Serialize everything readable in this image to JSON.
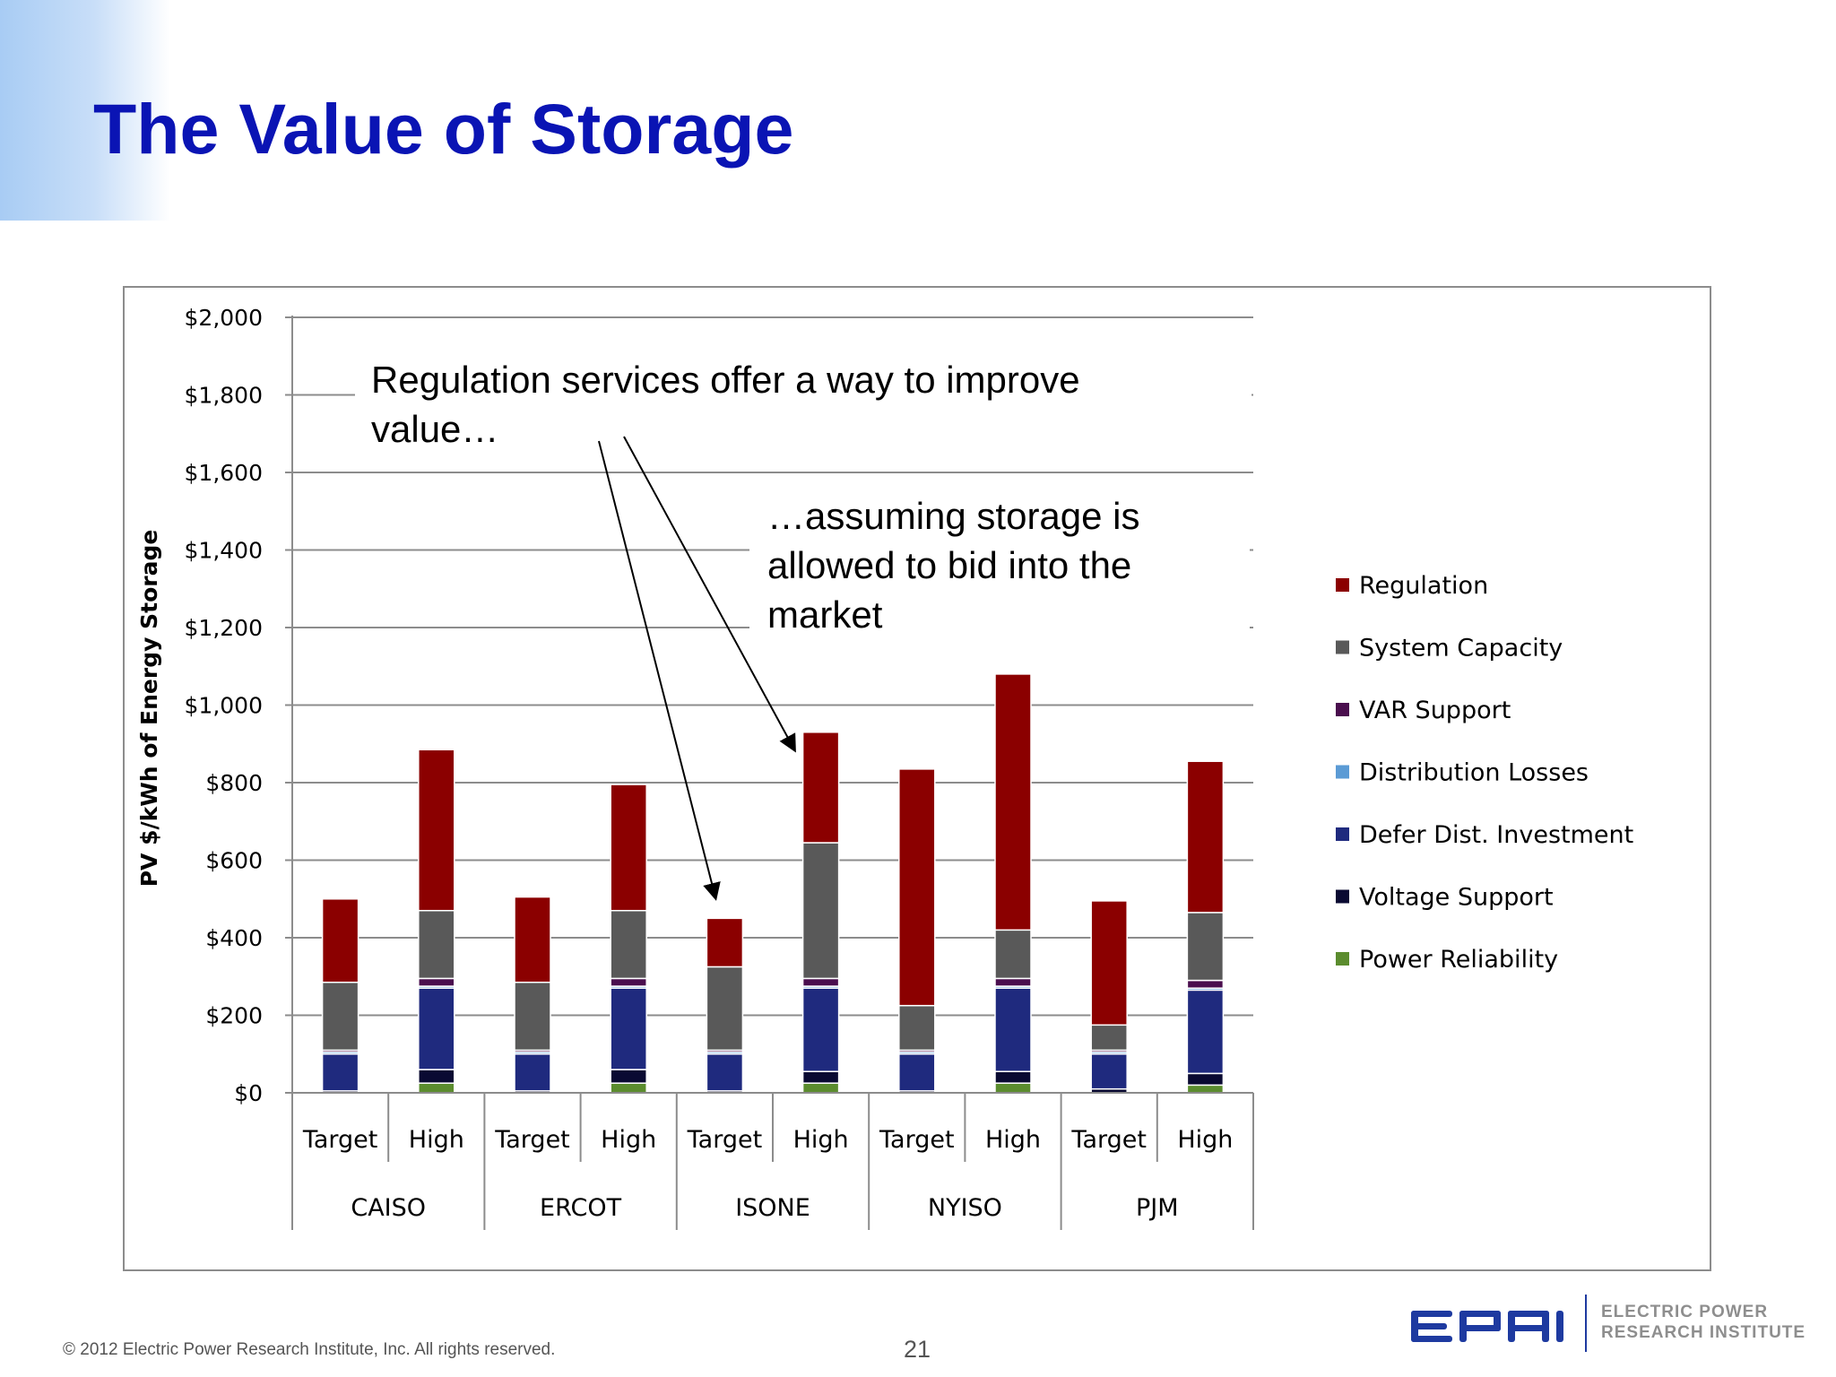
{
  "slide": {
    "title": "The Value of Storage",
    "footer": "© 2012 Electric Power Research Institute, Inc. All rights reserved.",
    "page_number": "21",
    "logo": {
      "wordmark": "EPRI",
      "tagline_line1": "ELECTRIC POWER",
      "tagline_line2": "RESEARCH INSTITUTE",
      "color": "#1e3aa0"
    }
  },
  "chart_data": {
    "type": "bar",
    "stacked": true,
    "title": "",
    "ylabel": "PV $/kWh of Energy Storage",
    "xlabel": "",
    "ylim": [
      0,
      2000
    ],
    "yticks": [
      0,
      200,
      400,
      600,
      800,
      1000,
      1200,
      1400,
      1600,
      1800,
      2000
    ],
    "ytick_labels": [
      "$0",
      "$200",
      "$400",
      "$600",
      "$800",
      "$1,000",
      "$1,200",
      "$1,400",
      "$1,600",
      "$1,800",
      "$2,000"
    ],
    "grid": true,
    "legend_position": "right",
    "groups": [
      "CAISO",
      "ERCOT",
      "ISONE",
      "NYISO",
      "PJM"
    ],
    "categories": [
      "Target",
      "High",
      "Target",
      "High",
      "Target",
      "High",
      "Target",
      "High",
      "Target",
      "High"
    ],
    "series": [
      {
        "name": "Power Reliability",
        "color": "#5b8c2e",
        "values": [
          0,
          25,
          0,
          25,
          0,
          25,
          0,
          25,
          0,
          20
        ]
      },
      {
        "name": "Voltage Support",
        "color": "#0a0a32",
        "values": [
          5,
          35,
          5,
          35,
          5,
          30,
          5,
          30,
          10,
          30
        ]
      },
      {
        "name": "Defer Dist. Investment",
        "color": "#1f2a7e",
        "values": [
          95,
          210,
          95,
          210,
          95,
          215,
          95,
          215,
          90,
          215
        ]
      },
      {
        "name": "Distribution Losses",
        "color": "#5b9bd5",
        "values": [
          5,
          5,
          5,
          5,
          5,
          5,
          5,
          5,
          5,
          5
        ]
      },
      {
        "name": "VAR Support",
        "color": "#4a0e4e",
        "values": [
          5,
          20,
          5,
          20,
          5,
          20,
          5,
          20,
          5,
          20
        ]
      },
      {
        "name": "System Capacity",
        "color": "#595959",
        "values": [
          175,
          175,
          175,
          175,
          215,
          350,
          115,
          125,
          65,
          175
        ]
      },
      {
        "name": "Regulation",
        "color": "#8b0000",
        "values": [
          215,
          415,
          220,
          325,
          125,
          285,
          610,
          660,
          320,
          390
        ]
      }
    ],
    "legend_order": [
      "Regulation",
      "System Capacity",
      "VAR Support",
      "Distribution Losses",
      "Defer Dist. Investment",
      "Voltage Support",
      "Power Reliability"
    ],
    "annotations": [
      {
        "text_line1": "Regulation services offer a way to improve",
        "text_line2": "value…"
      },
      {
        "text_line1": "…assuming storage is",
        "text_line2": "allowed to bid into the",
        "text_line3": "market"
      }
    ]
  }
}
